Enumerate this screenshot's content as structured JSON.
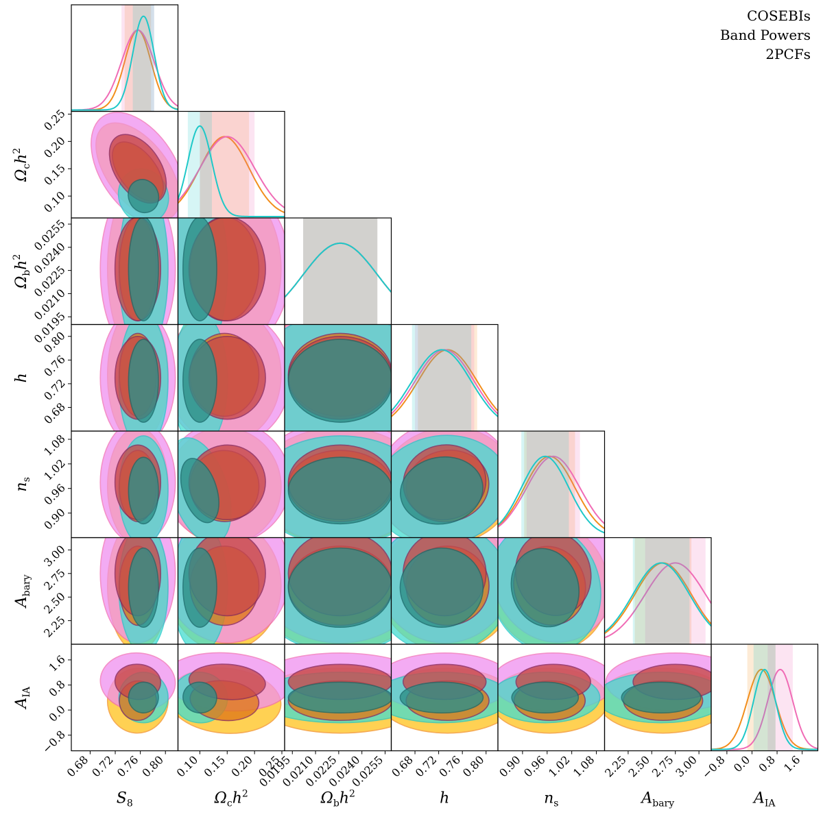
{
  "chart_data": {
    "type": "corner",
    "title": "",
    "legend": {
      "placement": "top-right",
      "entries": [
        {
          "name": "COSEBIs",
          "color": "#f28e1c"
        },
        {
          "name": "Band Powers",
          "color": "#f06bb5"
        },
        {
          "name": "2PCFs",
          "color": "#1ec8c8"
        }
      ]
    },
    "params": [
      {
        "key": "S8",
        "label": "S",
        "sub": "8",
        "sup": "",
        "range": [
          0.65,
          0.82
        ],
        "ticks": [
          "0.68",
          "0.72",
          "0.76",
          "0.80"
        ]
      },
      {
        "key": "omch2",
        "label": "Ω",
        "sub": "c",
        "sup": "2",
        "tail": "h",
        "range": [
          0.06,
          0.255
        ],
        "ticks": [
          "0.10",
          "0.15",
          "0.20",
          "0.25"
        ]
      },
      {
        "key": "ombh2",
        "label": "Ω",
        "sub": "b",
        "sup": "2",
        "tail": "h",
        "range": [
          0.019,
          0.0259
        ],
        "ticks": [
          "0.0195",
          "0.0210",
          "0.0225",
          "0.0240",
          "0.0255"
        ]
      },
      {
        "key": "h",
        "label": "h",
        "sub": "",
        "sup": "",
        "range": [
          0.64,
          0.82
        ],
        "ticks": [
          "0.68",
          "0.72",
          "0.76",
          "0.80"
        ]
      },
      {
        "key": "ns",
        "label": "n",
        "sub": "s",
        "sup": "",
        "range": [
          0.84,
          1.1
        ],
        "ticks": [
          "0.90",
          "0.96",
          "1.02",
          "1.08"
        ]
      },
      {
        "key": "Abary",
        "label": "A",
        "sub": "bary",
        "sup": "",
        "range": [
          2.0,
          3.13
        ],
        "ticks": [
          "2.25",
          "2.50",
          "2.75",
          "3.00"
        ]
      },
      {
        "key": "AIA",
        "label": "A",
        "sub": "IA",
        "sup": "",
        "range": [
          -1.3,
          2.1
        ],
        "ticks": [
          "−0.8",
          "0.0",
          "0.8",
          "1.6"
        ]
      }
    ],
    "y_tick_labels": {
      "omch2": [
        "0.10",
        "0.15",
        "0.20",
        "0.25"
      ],
      "ombh2": [
        "0.0195",
        "0.0210",
        "0.0225",
        "0.0240",
        "0.0255"
      ],
      "h": [
        "0.68",
        "0.72",
        "0.76",
        "0.80"
      ],
      "ns": [
        "0.90",
        "0.96",
        "1.02",
        "1.08"
      ],
      "Abary": [
        "2.25",
        "2.50",
        "2.75",
        "3.00"
      ],
      "AIA": [
        "−0.8",
        "0.0",
        "0.8",
        "1.6"
      ]
    },
    "series": [
      {
        "name": "COSEBIs",
        "color": "#f28e1c",
        "fill_outer": "#ffc21a",
        "fill_inner": "#e07a1a",
        "mean": {
          "S8": 0.756,
          "omch2": 0.145,
          "ombh2": 0.0226,
          "h": 0.735,
          "ns": 0.966,
          "Abary": 2.62,
          "AIA": 0.3
        },
        "sigma": {
          "S8": 0.021,
          "omch2": 0.045,
          "ombh2": 0.0024,
          "h": 0.05,
          "ns": 0.062,
          "Abary": 0.3,
          "AIA": 0.45
        }
      },
      {
        "name": "Band Powers",
        "color": "#f06bb5",
        "fill_outer": "#f08ff0",
        "fill_inner": "#c84a4a",
        "mean": {
          "S8": 0.756,
          "omch2": 0.15,
          "ombh2": 0.0226,
          "h": 0.73,
          "ns": 0.975,
          "Abary": 2.75,
          "AIA": 0.9
        },
        "sigma": {
          "S8": 0.026,
          "omch2": 0.05,
          "ombh2": 0.0024,
          "h": 0.05,
          "ns": 0.065,
          "Abary": 0.32,
          "AIA": 0.4
        }
      },
      {
        "name": "2PCFs",
        "color": "#1ec8c8",
        "fill_outer": "#44ddd0",
        "fill_inner": "#2f8f88",
        "mean": {
          "S8": 0.765,
          "omch2": 0.1,
          "ombh2": 0.0226,
          "h": 0.725,
          "ns": 0.955,
          "Abary": 2.6,
          "AIA": 0.4
        },
        "sigma": {
          "S8": 0.017,
          "omch2": 0.022,
          "ombh2": 0.0024,
          "h": 0.05,
          "ns": 0.058,
          "Abary": 0.3,
          "AIA": 0.35
        }
      }
    ]
  }
}
